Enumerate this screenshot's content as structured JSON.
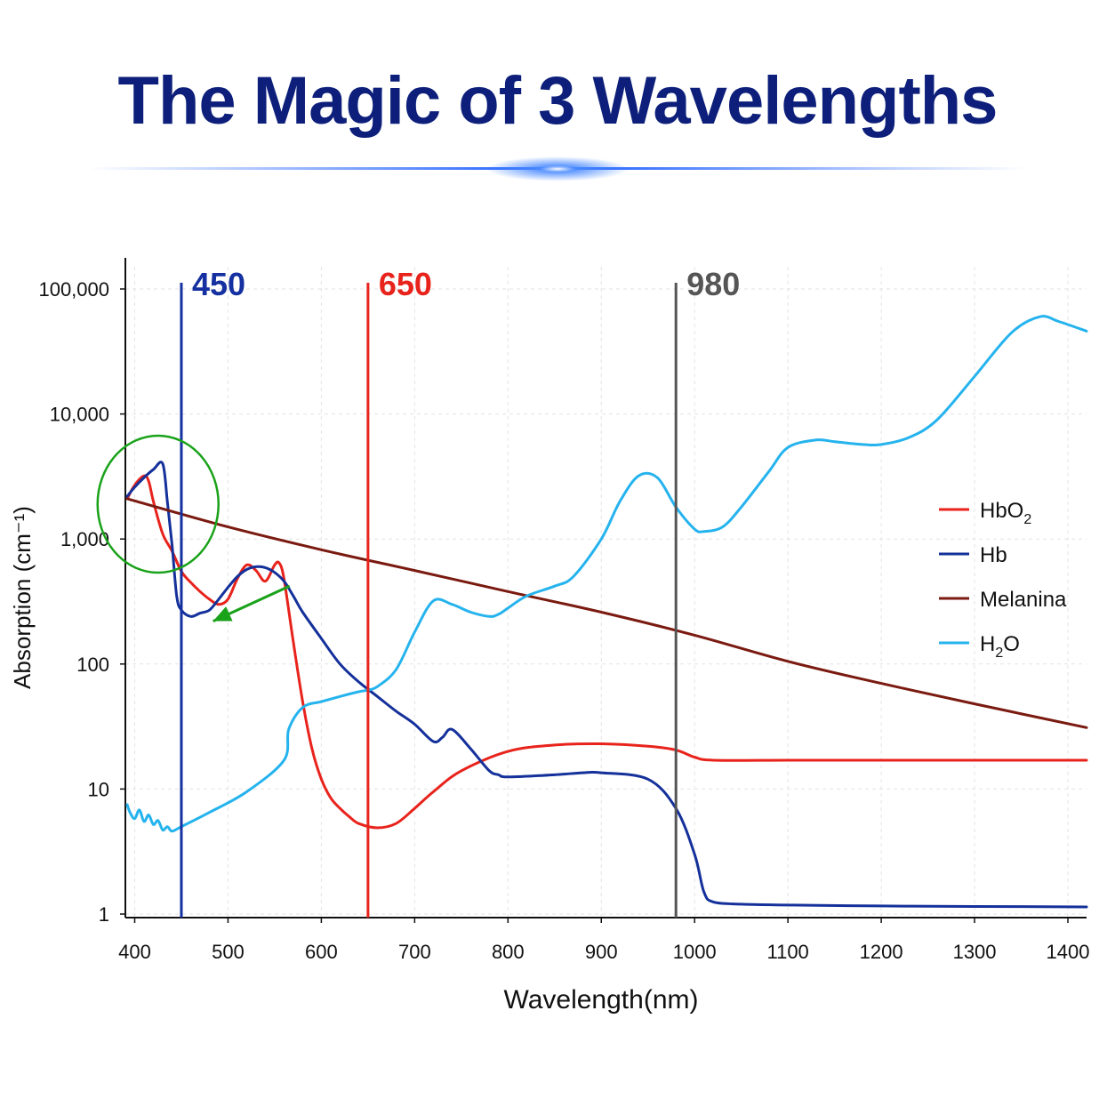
{
  "title": "The Magic of 3 Wavelengths",
  "chart_data": {
    "type": "line",
    "title": "The Magic of 3 Wavelengths",
    "xlabel": "Wavelength(nm)",
    "ylabel": "Absorption (cm⁻¹)",
    "xlim": [
      390,
      1420
    ],
    "ylim": [
      1,
      100000
    ],
    "y_scale": "log",
    "grid": true,
    "legend_position": "right",
    "x_ticks": [
      "400",
      "500",
      "600",
      "700",
      "800",
      "900",
      "1000",
      "1100",
      "1200",
      "1300",
      "1400"
    ],
    "y_ticks": [
      {
        "value": 1,
        "label": "1"
      },
      {
        "value": 10,
        "label": "10"
      },
      {
        "value": 100,
        "label": "100"
      },
      {
        "value": 1000,
        "label": "1,000"
      },
      {
        "value": 10000,
        "label": "10,000"
      },
      {
        "value": 100000,
        "label": "100,000"
      }
    ],
    "markers": [
      {
        "x": 450,
        "label": "450",
        "color": "#1530a0"
      },
      {
        "x": 650,
        "label": "650",
        "color": "#e8231c"
      },
      {
        "x": 980,
        "label": "980",
        "color": "#555555"
      }
    ],
    "series": [
      {
        "name": "HbO",
        "name_sub": "2",
        "color": "#e8231c",
        "x": [
          392,
          400,
          410,
          415,
          420,
          430,
          440,
          450,
          460,
          470,
          480,
          490,
          500,
          510,
          520,
          530,
          540,
          550,
          555,
          560,
          570,
          580,
          590,
          600,
          610,
          620,
          630,
          640,
          660,
          680,
          700,
          720,
          750,
          800,
          850,
          900,
          950,
          980,
          1000,
          1020,
          1100,
          1200,
          1300,
          1420
        ],
        "y": [
          2100,
          2700,
          3200,
          2900,
          2000,
          1100,
          800,
          550,
          450,
          380,
          330,
          300,
          330,
          480,
          620,
          560,
          460,
          620,
          640,
          480,
          150,
          50,
          21,
          12,
          8.5,
          7,
          6,
          5.3,
          4.9,
          5.3,
          7,
          9.5,
          14,
          20,
          22.5,
          23,
          22,
          20.5,
          18,
          17,
          17,
          17,
          17,
          17
        ]
      },
      {
        "name": "Hb",
        "name_sub": "",
        "color": "#14309a",
        "x": [
          392,
          400,
          410,
          420,
          430,
          435,
          440,
          445,
          450,
          460,
          470,
          480,
          490,
          500,
          510,
          520,
          530,
          540,
          550,
          560,
          570,
          580,
          600,
          620,
          640,
          660,
          680,
          700,
          720,
          730,
          740,
          760,
          780,
          790,
          800,
          850,
          880,
          900,
          950,
          980,
          1000,
          1010,
          1020,
          1050,
          1100,
          1200,
          1300,
          1420
        ],
        "y": [
          2200,
          2600,
          3100,
          3600,
          4000,
          2000,
          900,
          350,
          270,
          240,
          255,
          270,
          330,
          410,
          500,
          570,
          600,
          590,
          540,
          460,
          350,
          260,
          160,
          100,
          72,
          55,
          42,
          33,
          24,
          26,
          30,
          21,
          14,
          13,
          12.5,
          13,
          13.5,
          13.5,
          12,
          7,
          3,
          1.5,
          1.25,
          1.2,
          1.18,
          1.16,
          1.15,
          1.14
        ]
      },
      {
        "name": "Melanina",
        "name_sub": "",
        "color": "#7a1a10",
        "x": [
          392,
          500,
          600,
          700,
          800,
          900,
          1000,
          1100,
          1200,
          1300,
          1420
        ],
        "y": [
          2100,
          1250,
          820,
          560,
          380,
          260,
          170,
          105,
          70,
          48,
          31
        ]
      },
      {
        "name": "H",
        "name_sub": "2",
        "name_after": "O",
        "color": "#25b3ee",
        "x": [
          392,
          395,
          400,
          405,
          410,
          415,
          420,
          425,
          430,
          435,
          440,
          450,
          480,
          520,
          560,
          565,
          580,
          600,
          620,
          640,
          650,
          660,
          680,
          700,
          720,
          740,
          760,
          780,
          790,
          800,
          820,
          850,
          870,
          900,
          920,
          940,
          960,
          980,
          1000,
          1010,
          1030,
          1050,
          1080,
          1100,
          1130,
          1150,
          1180,
          1200,
          1230,
          1260,
          1300,
          1340,
          1370,
          1390,
          1420
        ],
        "y": [
          7.5,
          6.5,
          5.8,
          6.8,
          5.5,
          6.2,
          5.2,
          5.6,
          4.7,
          5.0,
          4.6,
          5.0,
          6.5,
          9.5,
          17,
          30,
          45,
          50,
          55,
          60,
          62,
          66,
          90,
          180,
          320,
          300,
          260,
          240,
          250,
          280,
          350,
          420,
          500,
          1000,
          2000,
          3200,
          3100,
          1800,
          1200,
          1150,
          1250,
          1800,
          3500,
          5400,
          6200,
          6000,
          5700,
          5700,
          6500,
          9000,
          20000,
          45000,
          60000,
          55000,
          46000
        ]
      }
    ],
    "annotations": [
      {
        "type": "circle",
        "center": [
          425,
          1900
        ],
        "color": "#1aa21a"
      },
      {
        "type": "arrow",
        "from": [
          566,
          420
        ],
        "to": [
          484,
          220
        ],
        "color": "#1aa21a"
      }
    ]
  }
}
